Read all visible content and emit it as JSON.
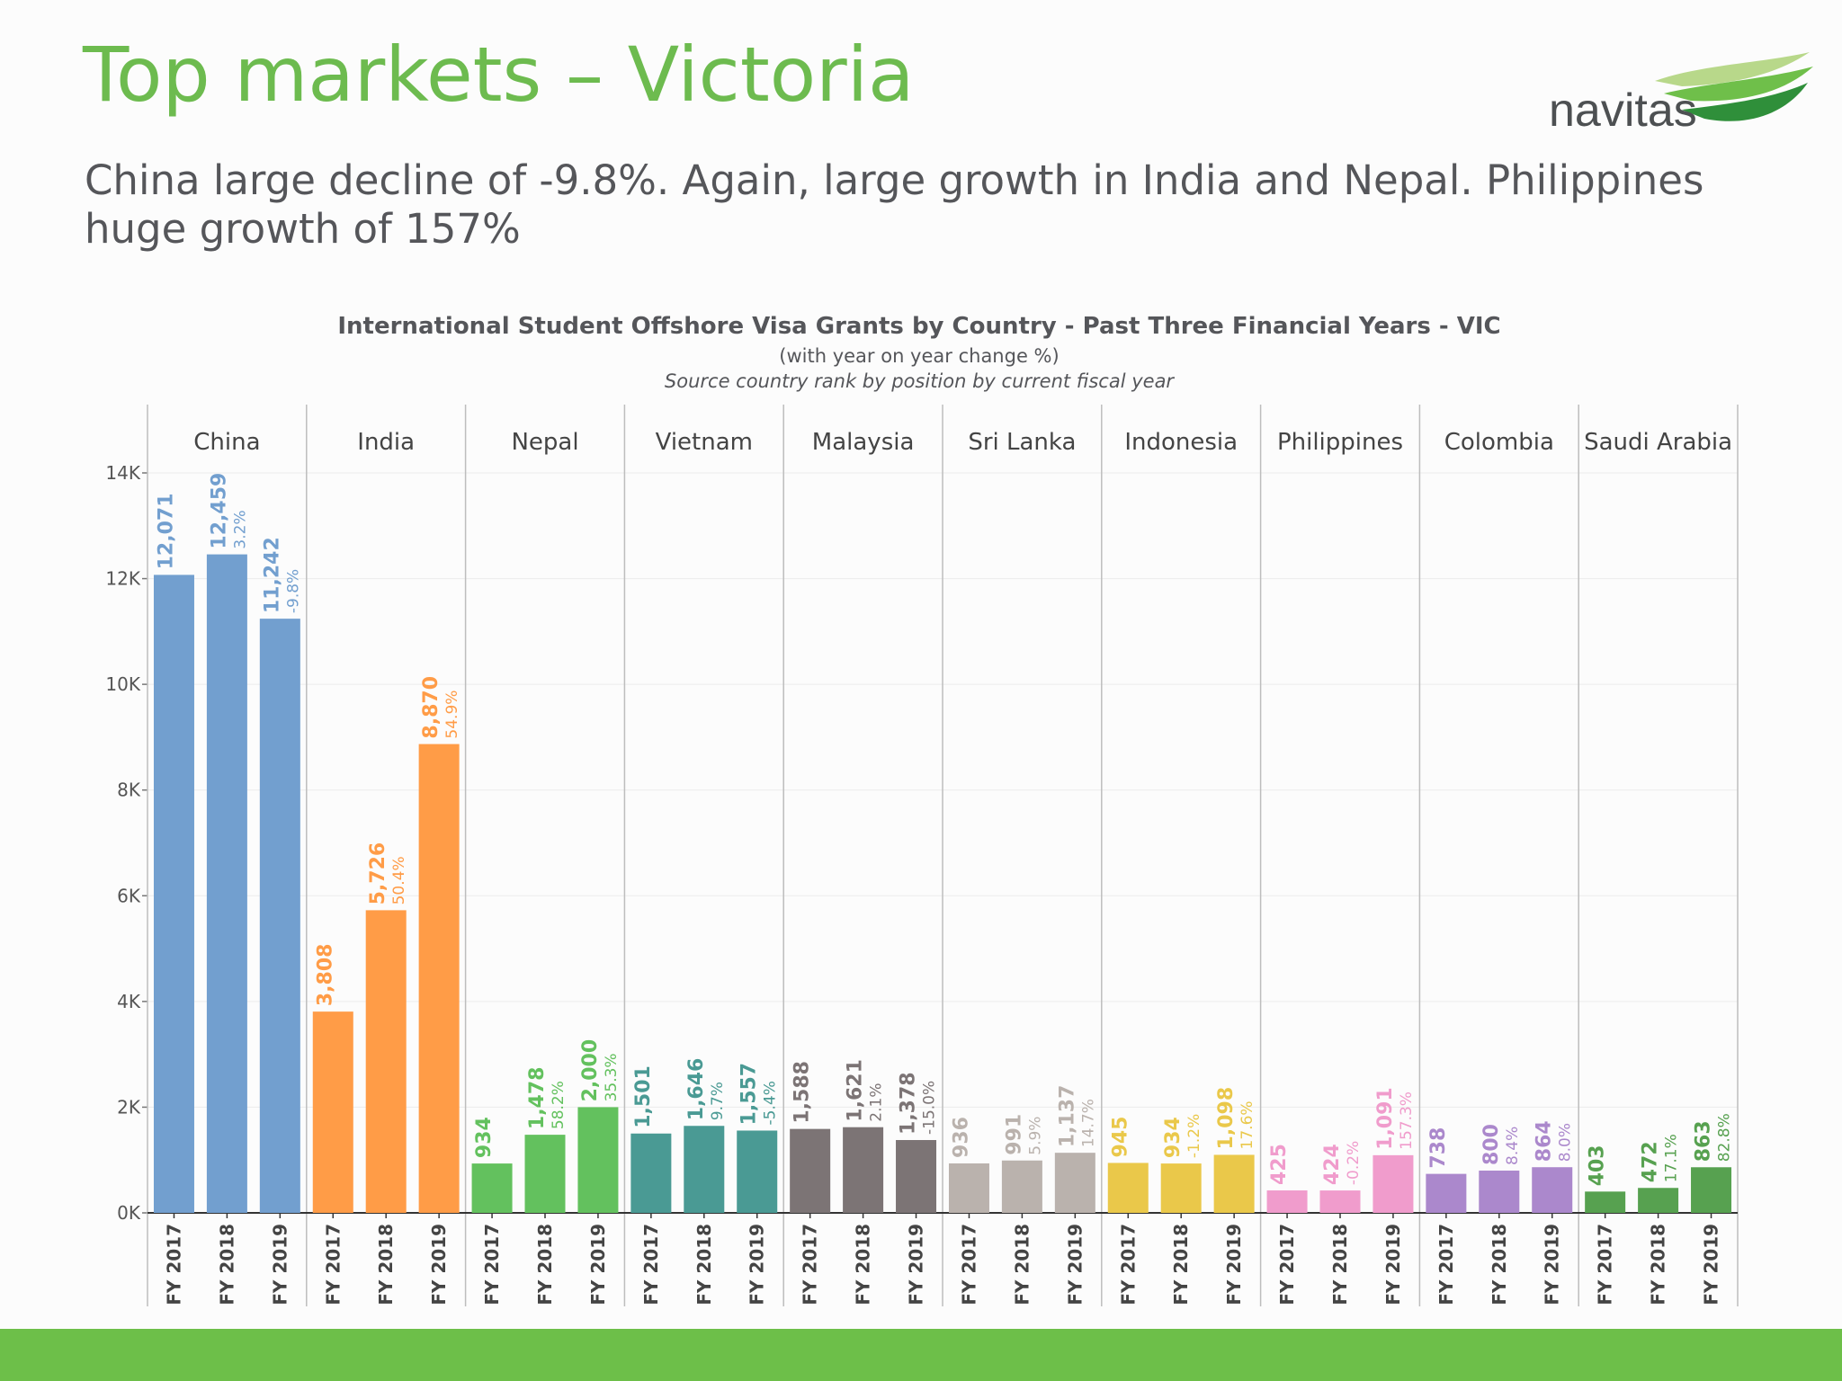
{
  "slide": {
    "title": "Top markets – Victoria",
    "subtitle": "China large decline of -9.8%. Again, large growth in India and Nepal. Philippines huge growth of 157%",
    "logo_text": "navitas",
    "footer_color": "#6dbf49"
  },
  "chart_data": {
    "type": "bar",
    "title": "International Student Offshore Visa Grants by Country - Past Three Financial Years - VIC",
    "subtitle": "(with year on year change %)",
    "note": "Source country rank by position by current fiscal year",
    "xlabel": "",
    "ylabel": "",
    "ylim": [
      0,
      15000
    ],
    "y_ticks": [
      0,
      2000,
      4000,
      6000,
      8000,
      10000,
      12000,
      14000
    ],
    "y_tick_labels": [
      "0K",
      "2K",
      "4K",
      "6K",
      "8K",
      "10K",
      "12K",
      "14K"
    ],
    "grid": true,
    "categories": [
      "FY 2017",
      "FY 2018",
      "FY 2019"
    ],
    "groups": [
      {
        "name": "China",
        "color": "#729fcf",
        "values": [
          12071,
          12459,
          11242
        ],
        "value_labels": [
          "12,071",
          "12,459",
          "11,242"
        ],
        "changes": [
          "",
          "3.2%",
          "-9.8%"
        ]
      },
      {
        "name": "India",
        "color": "#ff9c47",
        "values": [
          3808,
          5726,
          8870
        ],
        "value_labels": [
          "3,808",
          "5,726",
          "8,870"
        ],
        "changes": [
          "",
          "50.4%",
          "54.9%"
        ]
      },
      {
        "name": "Nepal",
        "color": "#63c15e",
        "values": [
          934,
          1478,
          2000
        ],
        "value_labels": [
          "934",
          "1,478",
          "2,000"
        ],
        "changes": [
          "",
          "58.2%",
          "35.3%"
        ]
      },
      {
        "name": "Vietnam",
        "color": "#4a9a94",
        "values": [
          1501,
          1646,
          1557
        ],
        "value_labels": [
          "1,501",
          "1,646",
          "1,557"
        ],
        "changes": [
          "",
          "9.7%",
          "-5.4%"
        ]
      },
      {
        "name": "Malaysia",
        "color": "#7c7475",
        "values": [
          1588,
          1621,
          1378
        ],
        "value_labels": [
          "1,588",
          "1,621",
          "1,378"
        ],
        "changes": [
          "",
          "2.1%",
          "-15.0%"
        ]
      },
      {
        "name": "Sri Lanka",
        "color": "#bab2ad",
        "values": [
          936,
          991,
          1137
        ],
        "value_labels": [
          "936",
          "991",
          "1,137"
        ],
        "changes": [
          "",
          "5.9%",
          "14.7%"
        ]
      },
      {
        "name": "Indonesia",
        "color": "#eac84a",
        "values": [
          945,
          934,
          1098
        ],
        "value_labels": [
          "945",
          "934",
          "1,098"
        ],
        "changes": [
          "",
          "-1.2%",
          "17.6%"
        ]
      },
      {
        "name": "Philippines",
        "color": "#f09ccc",
        "values": [
          425,
          424,
          1091
        ],
        "value_labels": [
          "425",
          "424",
          "1,091"
        ],
        "changes": [
          "",
          "-0.2%",
          "157.3%"
        ]
      },
      {
        "name": "Colombia",
        "color": "#ab88cc",
        "values": [
          738,
          800,
          864
        ],
        "value_labels": [
          "738",
          "800",
          "864"
        ],
        "changes": [
          "",
          "8.4%",
          "8.0%"
        ]
      },
      {
        "name": "Saudi Arabia",
        "color": "#57a150",
        "values": [
          403,
          472,
          863
        ],
        "value_labels": [
          "403",
          "472",
          "863"
        ],
        "changes": [
          "",
          "17.1%",
          "82.8%"
        ]
      }
    ]
  }
}
